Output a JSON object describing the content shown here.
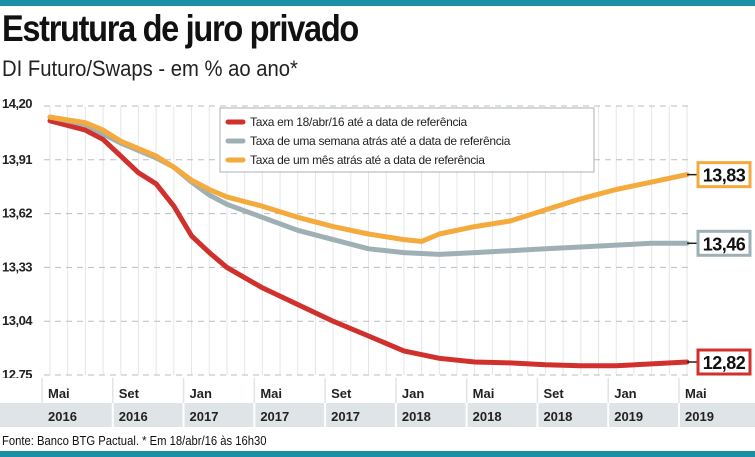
{
  "title": "Estrutura de juro privado",
  "subtitle": "DI Futuro/Swaps - em % ao ano*",
  "source": "Fonte: Banco BTG Pactual. * Em 18/abr/16 às 16h30",
  "chart_data": {
    "type": "line",
    "ylim": [
      12.75,
      14.2
    ],
    "yticks": [
      "14,20",
      "13,91",
      "13,62",
      "13,33",
      "13,04",
      "12,75"
    ],
    "ytick_values": [
      14.2,
      13.91,
      13.62,
      13.33,
      13.04,
      12.75
    ],
    "xticks": [
      {
        "month": "Mai",
        "year": "2016",
        "m": 0
      },
      {
        "month": "Set",
        "year": "2016",
        "m": 4
      },
      {
        "month": "Jan",
        "year": "2017",
        "m": 8
      },
      {
        "month": "Mai",
        "year": "2017",
        "m": 12
      },
      {
        "month": "Set",
        "year": "2017",
        "m": 16
      },
      {
        "month": "Jan",
        "year": "2018",
        "m": 20
      },
      {
        "month": "Mai",
        "year": "2018",
        "m": 24
      },
      {
        "month": "Set",
        "year": "2018",
        "m": 28
      },
      {
        "month": "Jan",
        "year": "2019",
        "m": 32
      },
      {
        "month": "Mai",
        "year": "2019",
        "m": 36
      }
    ],
    "x_unit": "months since Mai 2016",
    "grid": true,
    "legend": "top-center",
    "series": [
      {
        "name": "Taxa em 18/abr/16 até a data de referência",
        "color": "#d0312d",
        "end_label": "12,82",
        "m": [
          0,
          2,
          3,
          4,
          5,
          6,
          7,
          8,
          9,
          10,
          12,
          14,
          16,
          18,
          20,
          22,
          24,
          26,
          28,
          30,
          32,
          34,
          36
        ],
        "values": [
          14.12,
          14.07,
          14.02,
          13.93,
          13.84,
          13.78,
          13.66,
          13.5,
          13.41,
          13.33,
          13.22,
          13.13,
          13.04,
          12.96,
          12.88,
          12.84,
          12.82,
          12.815,
          12.805,
          12.8,
          12.8,
          12.81,
          12.82
        ]
      },
      {
        "name": "Taxa de uma semana atrás até a data de referência",
        "color": "#9fb0b4",
        "end_label": "13,46",
        "m": [
          0,
          2,
          4,
          6,
          7,
          8,
          9,
          10,
          12,
          14,
          16,
          18,
          20,
          22,
          24,
          26,
          28,
          30,
          32,
          34,
          36
        ],
        "values": [
          14.14,
          14.1,
          14.0,
          13.92,
          13.87,
          13.79,
          13.72,
          13.67,
          13.6,
          13.53,
          13.48,
          13.43,
          13.41,
          13.4,
          13.41,
          13.42,
          13.43,
          13.44,
          13.45,
          13.46,
          13.46
        ]
      },
      {
        "name": "Taxa de um mês atrás até a data de referência",
        "color": "#f4aa3c",
        "end_label": "13,83",
        "m": [
          0,
          2,
          3,
          4,
          6,
          7,
          8,
          9,
          10,
          12,
          14,
          16,
          18,
          20,
          21,
          22,
          24,
          26,
          28,
          30,
          32,
          34,
          36
        ],
        "values": [
          14.14,
          14.11,
          14.07,
          14.01,
          13.93,
          13.87,
          13.8,
          13.75,
          13.71,
          13.66,
          13.6,
          13.55,
          13.51,
          13.48,
          13.47,
          13.51,
          13.55,
          13.58,
          13.64,
          13.7,
          13.75,
          13.79,
          13.83
        ]
      }
    ]
  }
}
